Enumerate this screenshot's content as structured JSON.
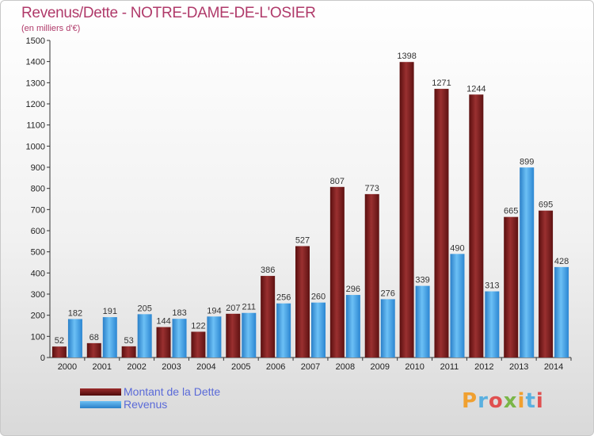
{
  "title": "Revenus/Dette - NOTRE-DAME-DE-L'OSIER",
  "subtitle": "(en milliers d'€)",
  "logo": {
    "text": "Proxiti",
    "colors": [
      "#f0a030",
      "#5ab0e0",
      "#e05050",
      "#7ab648",
      "#f0a030",
      "#5ab0e0",
      "#e05050"
    ]
  },
  "legend": [
    {
      "label": "Montant de la Dette",
      "color": "#7a1a1a"
    },
    {
      "label": "Revenus",
      "color": "#3b9de3"
    }
  ],
  "chart_data": {
    "type": "bar",
    "categories": [
      "2000",
      "2001",
      "2002",
      "2003",
      "2004",
      "2005",
      "2006",
      "2007",
      "2008",
      "2009",
      "2010",
      "2011",
      "2012",
      "2013",
      "2014"
    ],
    "series": [
      {
        "name": "Montant de la Dette",
        "color": "#7a1a1a",
        "values": [
          52,
          68,
          53,
          144,
          122,
          207,
          386,
          527,
          807,
          773,
          1398,
          1271,
          1244,
          665,
          695
        ]
      },
      {
        "name": "Revenus",
        "color": "#3b9de3",
        "values": [
          182,
          191,
          205,
          183,
          194,
          211,
          256,
          260,
          296,
          276,
          339,
          490,
          313,
          899,
          428
        ]
      }
    ],
    "ylim": [
      0,
      1500
    ],
    "yticks": [
      0,
      100,
      200,
      300,
      400,
      500,
      600,
      700,
      800,
      900,
      1000,
      1100,
      1200,
      1300,
      1400,
      1500
    ],
    "grid": false
  }
}
